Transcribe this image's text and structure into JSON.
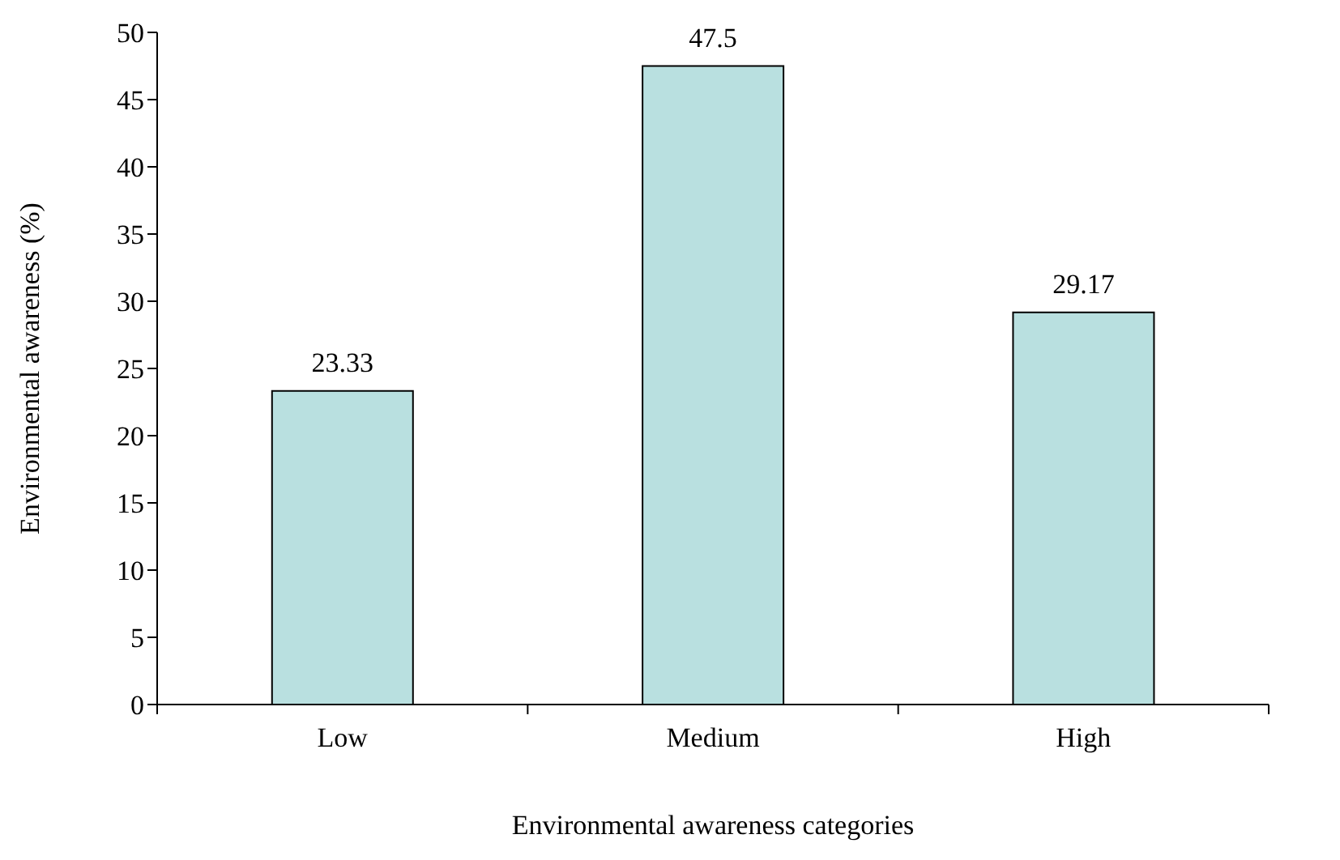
{
  "chart_data": {
    "type": "bar",
    "xlabel": "Environmental awareness categories",
    "ylabel": "Environmental awareness (%)",
    "categories": [
      "Low",
      "Medium",
      "High"
    ],
    "values": [
      23.33,
      47.5,
      29.17
    ],
    "color": "#b9e0e0",
    "ylim": [
      0,
      50
    ],
    "yticks": [
      0,
      5,
      10,
      15,
      20,
      25,
      30,
      35,
      40,
      45,
      50
    ],
    "data_labels": true,
    "grid": false,
    "legend": false
  }
}
